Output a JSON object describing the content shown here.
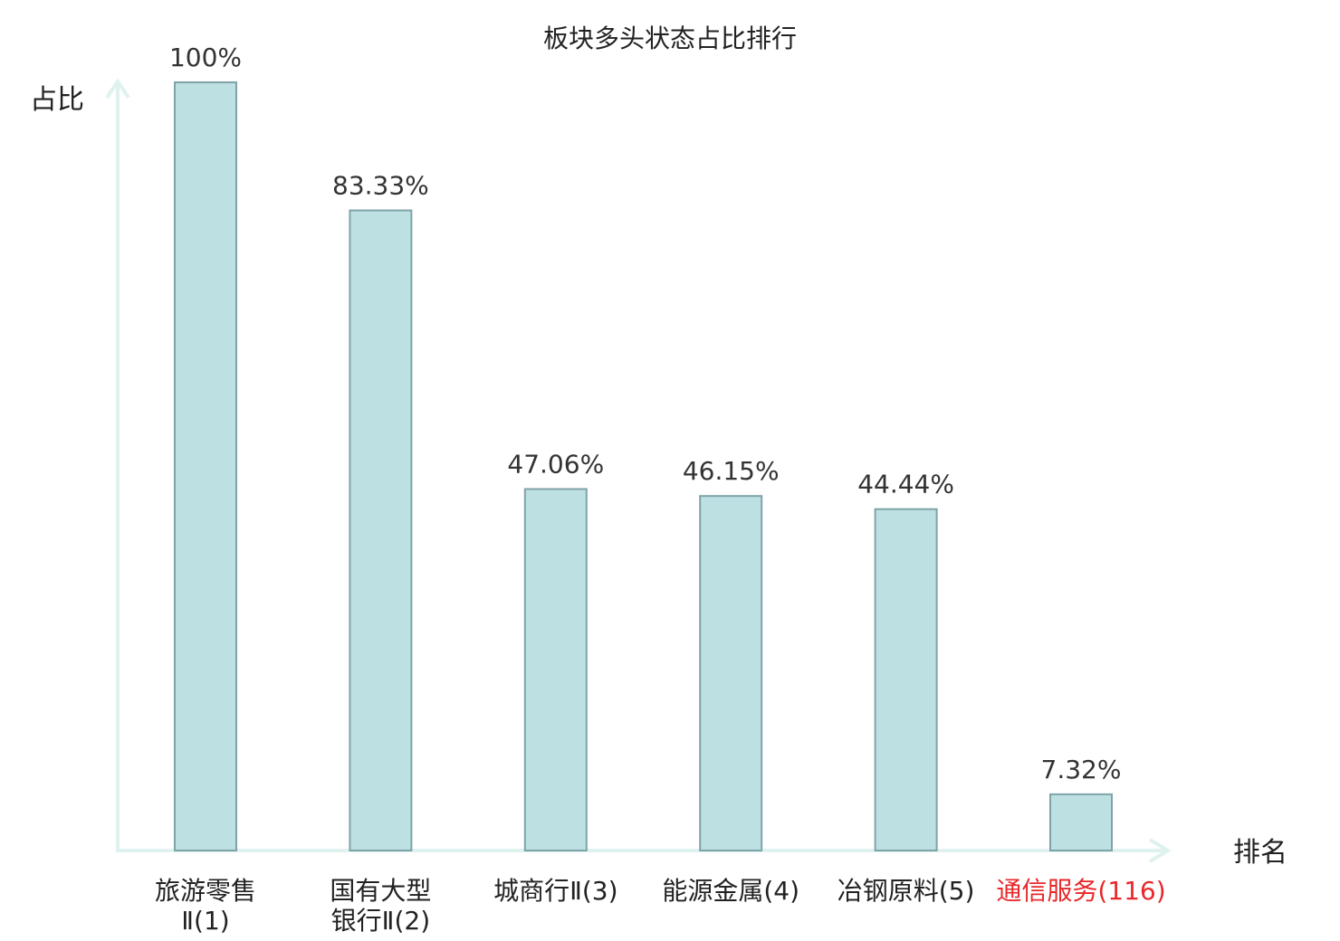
{
  "chart_data": {
    "type": "bar",
    "title": "板块多头状态占比排行",
    "ylabel": "占比",
    "xlabel": "排名",
    "ylim": [
      0,
      100
    ],
    "grid": false,
    "categories": [
      {
        "lines": [
          "旅游零售",
          "Ⅱ(1)"
        ],
        "name": "旅游零售Ⅱ",
        "rank": "1",
        "highlight": false
      },
      {
        "lines": [
          "国有大型",
          "银行Ⅱ(2)"
        ],
        "name": "国有大型银行Ⅱ",
        "rank": "2",
        "highlight": false
      },
      {
        "lines": [
          "城商行Ⅱ(3)"
        ],
        "name": "城商行Ⅱ",
        "rank": "3",
        "highlight": false
      },
      {
        "lines": [
          "能源金属(4)"
        ],
        "name": "能源金属",
        "rank": "4",
        "highlight": false
      },
      {
        "lines": [
          "冶钢原料(5)"
        ],
        "name": "冶钢原料",
        "rank": "5",
        "highlight": false
      },
      {
        "lines": [
          "通信服务(116)"
        ],
        "name": "通信服务",
        "rank": "116",
        "highlight": true
      }
    ],
    "values": [
      100,
      83.33,
      47.06,
      46.15,
      44.44,
      7.32
    ],
    "value_labels": [
      "100%",
      "83.33%",
      "47.06%",
      "46.15%",
      "44.44%",
      "7.32%"
    ],
    "colors": {
      "bar_fill": "#bde0e3",
      "bar_stroke": "#7fa3a8",
      "axis": "#e0f2f0",
      "text": "#222222",
      "value_text": "#333333",
      "highlight": "#e8282b"
    }
  }
}
